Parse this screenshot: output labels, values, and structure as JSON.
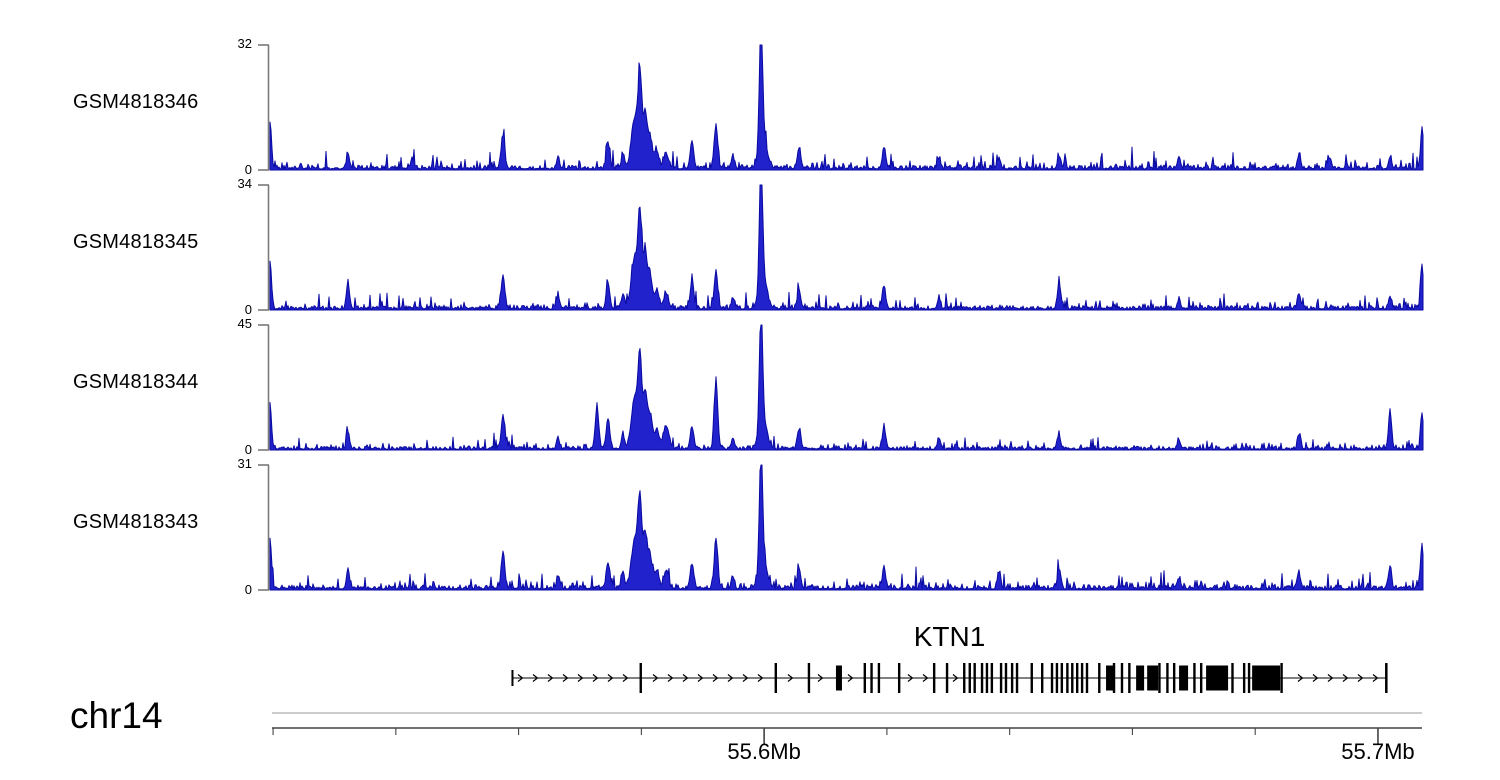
{
  "page": {
    "chrom_label": "chr14"
  },
  "colors": {
    "signal_fill": "#2222cd",
    "signal_stroke": "#0a0aa0",
    "yaxis_line": "#7a7a7a",
    "genome_topline": "#999999",
    "genome_axis_line": "#444444",
    "gene_color": "#000000"
  },
  "chart_data": {
    "type": "area",
    "title": "",
    "description": "Genome-browser read-coverage tracks (four GEO samples) across the KTN1 locus on chr14; x-axis 55.52-55.70 Mb, minor ticks every 0.02 Mb.",
    "legend_position": "left-labels",
    "grid": false,
    "axis": {
      "chrom": "chr14",
      "unit": "Mb",
      "start_mb": 55.5195,
      "end_mb": 55.7075,
      "first_tick_mb": 55.52,
      "minor_tick_step_mb": 0.02,
      "major_ticks": [
        {
          "mb": 55.6,
          "label": "55.6Mb"
        },
        {
          "mb": 55.7,
          "label": "55.7Mb"
        }
      ]
    },
    "noise": {
      "base": 0.25,
      "base_amp": 1.0,
      "spike_p": 0.26,
      "spike_amp": 1.7,
      "big_spike_p": 0.045,
      "big_spike_amp": 2.6
    },
    "tracks": [
      {
        "label": "GSM4818346",
        "ymin": 0,
        "ymax": 32,
        "seed": 101,
        "peaks": [
          [
            55.5195,
            12,
            1.5
          ],
          [
            55.5322,
            4,
            1.5
          ],
          [
            55.5427,
            2.5,
            1.5
          ],
          [
            55.5575,
            8.5,
            1.8
          ],
          [
            55.5665,
            2.5,
            1.5
          ],
          [
            55.5746,
            6.5,
            1.8
          ],
          [
            55.577,
            3.5,
            1.5
          ],
          [
            55.579,
            13,
            3.5
          ],
          [
            55.5797,
            20,
            1.8
          ],
          [
            55.5806,
            13,
            2
          ],
          [
            55.5814,
            8,
            2.5
          ],
          [
            55.5826,
            4.5,
            2
          ],
          [
            55.584,
            3.5,
            2.5
          ],
          [
            55.5882,
            7,
            1.8
          ],
          [
            55.5921,
            11,
            1.8
          ],
          [
            55.595,
            3,
            1.5
          ],
          [
            55.5995,
            31.5,
            1.6
          ],
          [
            55.5998,
            8,
            4
          ],
          [
            55.6056,
            5,
            1.8
          ],
          [
            55.6195,
            5.5,
            1.6
          ],
          [
            55.6285,
            2.8,
            1.5
          ],
          [
            55.6383,
            2.6,
            1.6
          ],
          [
            55.648,
            3.2,
            1.6
          ],
          [
            55.6676,
            2.4,
            1.5
          ],
          [
            55.6872,
            3.6,
            1.5
          ],
          [
            55.6921,
            2.8,
            1.5
          ],
          [
            55.7019,
            3,
            1.5
          ],
          [
            55.7071,
            10.5,
            1.4
          ]
        ]
      },
      {
        "label": "GSM4818345",
        "ymin": 0,
        "ymax": 34,
        "seed": 202,
        "peaks": [
          [
            55.5195,
            13,
            1.5
          ],
          [
            55.5322,
            7,
            1.5
          ],
          [
            55.5575,
            9,
            1.8
          ],
          [
            55.5665,
            3,
            1.5
          ],
          [
            55.5746,
            7,
            1.8
          ],
          [
            55.577,
            4,
            1.5
          ],
          [
            55.579,
            14,
            3.5
          ],
          [
            55.5797,
            22,
            1.8
          ],
          [
            55.5806,
            14,
            2
          ],
          [
            55.5814,
            9,
            2.5
          ],
          [
            55.5826,
            5,
            2
          ],
          [
            55.584,
            4,
            2.5
          ],
          [
            55.5882,
            7.5,
            1.8
          ],
          [
            55.5921,
            10,
            1.8
          ],
          [
            55.595,
            3,
            1.5
          ],
          [
            55.5995,
            33,
            1.6
          ],
          [
            55.5998,
            8,
            4
          ],
          [
            55.6056,
            5,
            1.8
          ],
          [
            55.6195,
            6,
            1.6
          ],
          [
            55.6285,
            3,
            1.5
          ],
          [
            55.648,
            7,
            1.6
          ],
          [
            55.6676,
            2.5,
            1.5
          ],
          [
            55.6872,
            4,
            1.5
          ],
          [
            55.7019,
            3.5,
            1.5
          ],
          [
            55.7071,
            12,
            1.4
          ]
        ]
      },
      {
        "label": "GSM4818344",
        "ymin": 0,
        "ymax": 45,
        "seed": 303,
        "peaks": [
          [
            55.5195,
            16,
            1.5
          ],
          [
            55.5322,
            6,
            1.5
          ],
          [
            55.5575,
            12,
            1.8
          ],
          [
            55.5665,
            4,
            1.5
          ],
          [
            55.5727,
            15,
            1.8
          ],
          [
            55.5746,
            11,
            1.8
          ],
          [
            55.577,
            5,
            1.5
          ],
          [
            55.579,
            19,
            3.5
          ],
          [
            55.5797,
            28,
            1.8
          ],
          [
            55.5806,
            19,
            2
          ],
          [
            55.5814,
            12,
            2.5
          ],
          [
            55.5826,
            7,
            2
          ],
          [
            55.584,
            8,
            3
          ],
          [
            55.5882,
            8,
            1.8
          ],
          [
            55.5921,
            24,
            1.8
          ],
          [
            55.595,
            4,
            1.5
          ],
          [
            55.5995,
            42,
            1.6
          ],
          [
            55.5998,
            10,
            4
          ],
          [
            55.6056,
            7,
            1.8
          ],
          [
            55.6195,
            8,
            1.6
          ],
          [
            55.6285,
            4,
            1.5
          ],
          [
            55.648,
            5,
            1.6
          ],
          [
            55.6676,
            3,
            1.5
          ],
          [
            55.6872,
            5,
            1.5
          ],
          [
            55.7019,
            14,
            1.5
          ],
          [
            55.7071,
            13,
            1.4
          ]
        ]
      },
      {
        "label": "GSM4818343",
        "ymin": 0,
        "ymax": 31,
        "seed": 404,
        "peaks": [
          [
            55.5195,
            12.5,
            1.5
          ],
          [
            55.5322,
            5,
            1.5
          ],
          [
            55.5575,
            8.5,
            1.8
          ],
          [
            55.5665,
            3,
            1.5
          ],
          [
            55.5746,
            6.5,
            1.8
          ],
          [
            55.577,
            4,
            1.5
          ],
          [
            55.579,
            12.5,
            3.5
          ],
          [
            55.5797,
            19,
            1.8
          ],
          [
            55.5806,
            12.5,
            2
          ],
          [
            55.5814,
            8,
            2.5
          ],
          [
            55.5826,
            4.5,
            2
          ],
          [
            55.584,
            4,
            2.5
          ],
          [
            55.5882,
            6,
            1.8
          ],
          [
            55.5921,
            12,
            1.8
          ],
          [
            55.595,
            3,
            1.5
          ],
          [
            55.5995,
            29,
            1.6
          ],
          [
            55.5998,
            7,
            4
          ],
          [
            55.6056,
            5,
            1.8
          ],
          [
            55.6195,
            5.5,
            1.6
          ],
          [
            55.6383,
            4,
            1.6
          ],
          [
            55.648,
            4.5,
            1.6
          ],
          [
            55.6676,
            2.5,
            1.5
          ],
          [
            55.6872,
            3.8,
            1.5
          ],
          [
            55.7019,
            5.5,
            1.5
          ],
          [
            55.7071,
            11,
            1.4
          ]
        ]
      }
    ],
    "gene": {
      "name": "KTN1",
      "strand": "right",
      "start_mb": 55.559,
      "end_mb": 55.7014,
      "thin_exons_mb": [
        55.5799,
        55.6019,
        55.6073,
        55.6164,
        55.6175,
        55.6187,
        55.622,
        55.6277,
        55.6298,
        55.6326,
        55.6335,
        55.6343,
        55.6355,
        55.6363,
        55.6371,
        55.6386,
        55.6394,
        55.6404,
        55.6412,
        55.6436,
        55.6453,
        55.6469,
        55.6477,
        55.6485,
        55.6494,
        55.6502,
        55.651,
        55.6518,
        55.6526,
        55.6546,
        55.657,
        55.6583,
        55.6595,
        55.6644,
        55.6657,
        55.6668,
        55.6701,
        55.6712,
        55.6763,
        55.6782,
        55.679,
        55.6843
      ],
      "thick_exons": [
        [
          55.6117,
          6
        ],
        [
          55.6557,
          9
        ],
        [
          55.6606,
          8
        ],
        [
          55.6624,
          11
        ],
        [
          55.6676,
          9
        ],
        [
          55.672,
          22
        ],
        [
          55.6795,
          28
        ]
      ]
    }
  }
}
